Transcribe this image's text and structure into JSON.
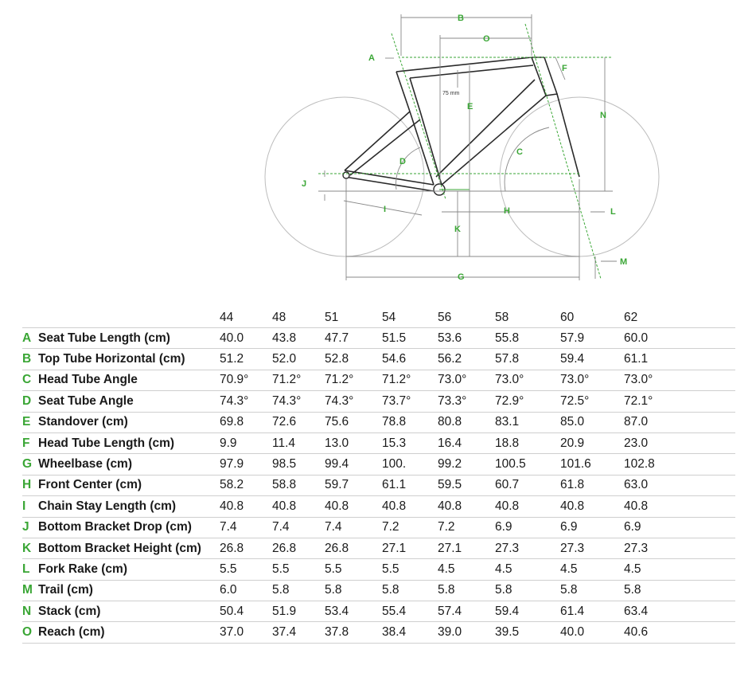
{
  "diagram_labels": [
    "A",
    "B",
    "C",
    "D",
    "E",
    "F",
    "G",
    "H",
    "I",
    "J",
    "K",
    "L",
    "M",
    "N",
    "O"
  ],
  "diagram_note": "75 mm",
  "colors": {
    "accent": "#3aa635",
    "frame": "#2a2a2a",
    "wheel": "#bdbdbd",
    "dim": "#888888"
  },
  "sizes": [
    "44",
    "48",
    "51",
    "54",
    "56",
    "58",
    "60",
    "62"
  ],
  "rows": [
    {
      "letter": "A",
      "name": "Seat Tube Length (cm)",
      "values": [
        "40.0",
        "43.8",
        "47.7",
        "51.5",
        "53.6",
        "55.8",
        "57.9",
        "60.0"
      ]
    },
    {
      "letter": "B",
      "name": "Top Tube Horizontal (cm)",
      "values": [
        "51.2",
        "52.0",
        "52.8",
        "54.6",
        "56.2",
        "57.8",
        "59.4",
        "61.1"
      ]
    },
    {
      "letter": "C",
      "name": "Head Tube Angle",
      "values": [
        "70.9°",
        "71.2°",
        "71.2°",
        "71.2°",
        "73.0°",
        "73.0°",
        "73.0°",
        "73.0°"
      ]
    },
    {
      "letter": "D",
      "name": "Seat Tube Angle",
      "values": [
        "74.3°",
        "74.3°",
        "74.3°",
        "73.7°",
        "73.3°",
        "72.9°",
        "72.5°",
        "72.1°"
      ]
    },
    {
      "letter": "E",
      "name": "Standover (cm)",
      "values": [
        "69.8",
        "72.6",
        "75.6",
        "78.8",
        "80.8",
        "83.1",
        "85.0",
        "87.0"
      ]
    },
    {
      "letter": "F",
      "name": "Head Tube Length (cm)",
      "values": [
        "9.9",
        "11.4",
        "13.0",
        "15.3",
        "16.4",
        "18.8",
        "20.9",
        "23.0"
      ]
    },
    {
      "letter": "G",
      "name": "Wheelbase (cm)",
      "values": [
        "97.9",
        "98.5",
        "99.4",
        "100.",
        "99.2",
        "100.5",
        "101.6",
        "102.8"
      ]
    },
    {
      "letter": "H",
      "name": "Front Center (cm)",
      "values": [
        "58.2",
        "58.8",
        "59.7",
        "61.1",
        "59.5",
        "60.7",
        "61.8",
        "63.0"
      ]
    },
    {
      "letter": "I",
      "name": "Chain Stay Length (cm)",
      "values": [
        "40.8",
        "40.8",
        "40.8",
        "40.8",
        "40.8",
        "40.8",
        "40.8",
        "40.8"
      ]
    },
    {
      "letter": "J",
      "name": "Bottom Bracket Drop (cm)",
      "values": [
        "7.4",
        "7.4",
        "7.4",
        "7.2",
        "7.2",
        "6.9",
        "6.9",
        "6.9"
      ]
    },
    {
      "letter": "K",
      "name": "Bottom Bracket Height (cm)",
      "values": [
        "26.8",
        "26.8",
        "26.8",
        "27.1",
        "27.1",
        "27.3",
        "27.3",
        "27.3"
      ]
    },
    {
      "letter": "L",
      "name": "Fork Rake (cm)",
      "values": [
        "5.5",
        "5.5",
        "5.5",
        "5.5",
        "4.5",
        "4.5",
        "4.5",
        "4.5"
      ]
    },
    {
      "letter": "M",
      "name": "Trail (cm)",
      "values": [
        "6.0",
        "5.8",
        "5.8",
        "5.8",
        "5.8",
        "5.8",
        "5.8",
        "5.8"
      ]
    },
    {
      "letter": "N",
      "name": "Stack (cm)",
      "values": [
        "50.4",
        "51.9",
        "53.4",
        "55.4",
        "57.4",
        "59.4",
        "61.4",
        "63.4"
      ]
    },
    {
      "letter": "O",
      "name": "Reach (cm)",
      "values": [
        "37.0",
        "37.4",
        "37.8",
        "38.4",
        "39.0",
        "39.5",
        "40.0",
        "40.6"
      ]
    }
  ]
}
